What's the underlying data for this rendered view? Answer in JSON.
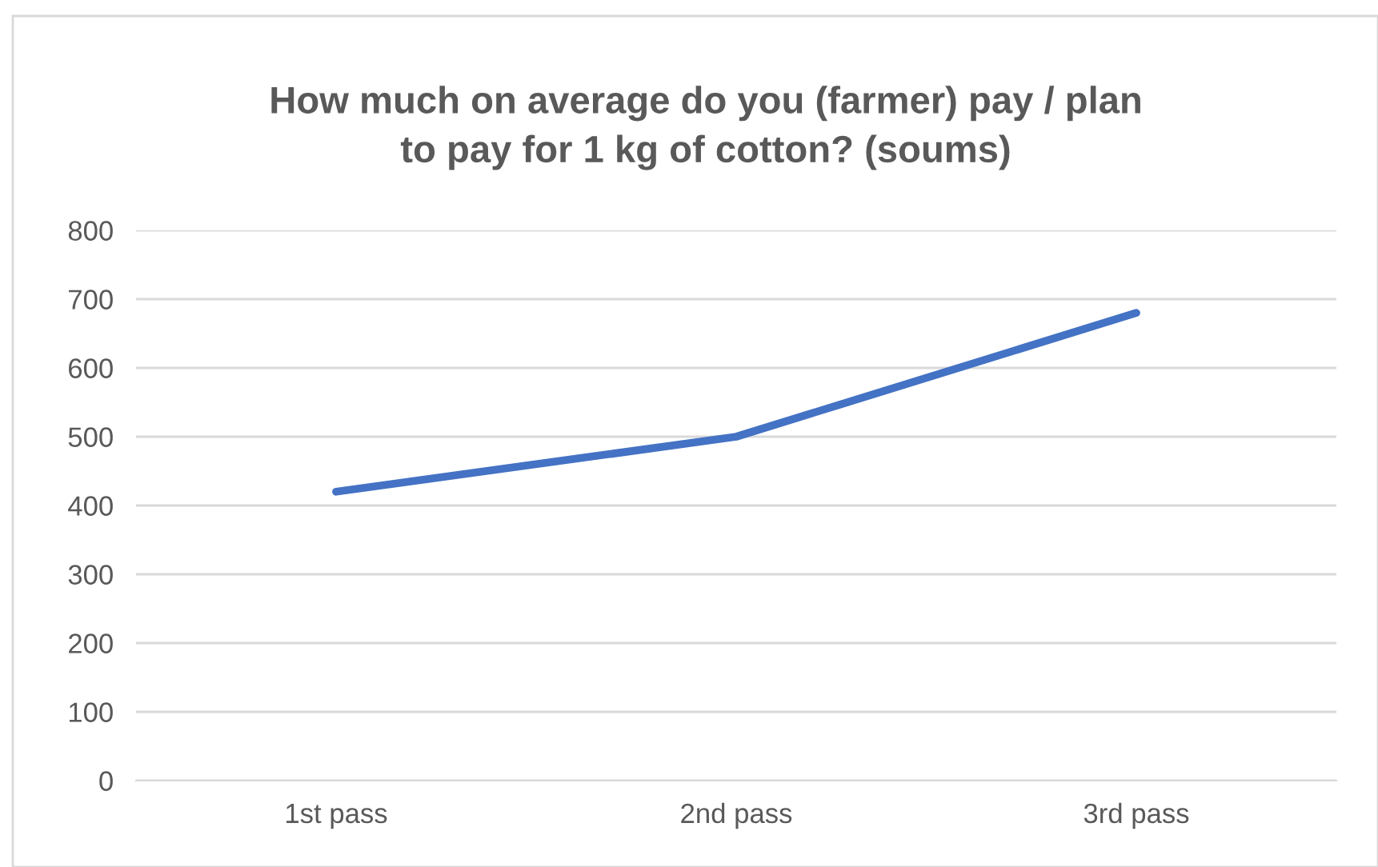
{
  "chart_data": {
    "type": "line",
    "title": "How much on average do you (farmer) pay / plan\nto pay for 1 kg of cotton? (soums)",
    "categories": [
      "1st pass",
      "2nd pass",
      "3rd pass"
    ],
    "series": [
      {
        "color": "#4472c4",
        "values": [
          420,
          500,
          680
        ]
      }
    ],
    "ylim": [
      0,
      800
    ],
    "yticks": [
      0,
      100,
      200,
      300,
      400,
      500,
      600,
      700,
      800
    ],
    "grid": "y",
    "marker": "none",
    "line_style": "solid"
  }
}
